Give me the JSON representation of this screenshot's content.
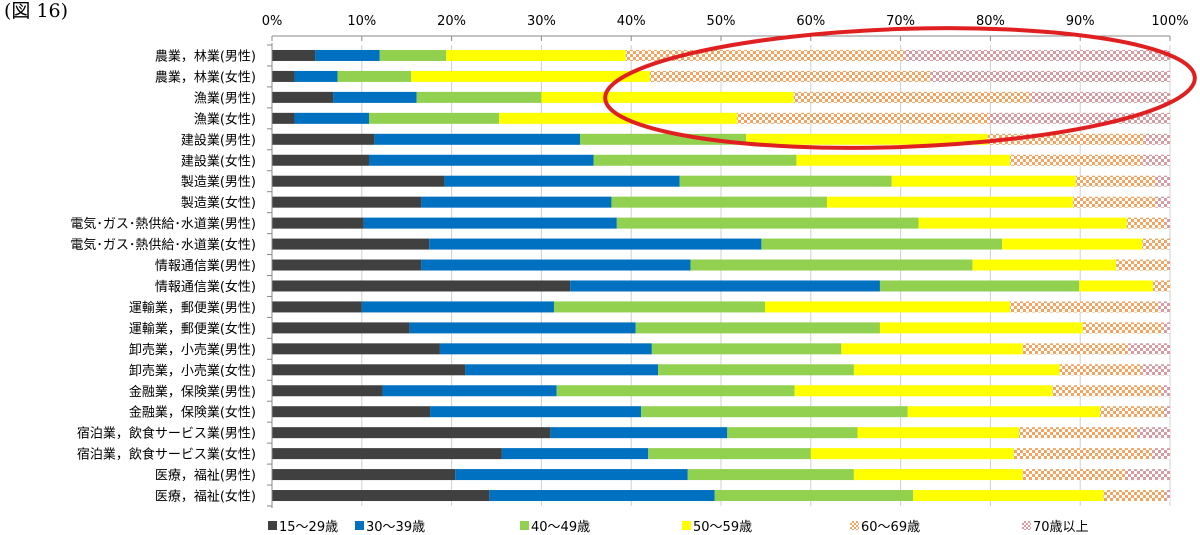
{
  "figure_label": "(図 16)",
  "colors": {
    "c15_29": "#404040",
    "c30_39": "#0070c0",
    "c40_49": "#92d050",
    "c50_59": "#ffff00",
    "c60_69": "#f4a460",
    "c70": "#d99aa2",
    "annotation": "#e02020"
  },
  "chart_data": {
    "type": "bar",
    "orientation": "horizontal",
    "stacked": "percent",
    "xlim": [
      0,
      100
    ],
    "x_ticks": [
      "0%",
      "10%",
      "20%",
      "30%",
      "40%",
      "50%",
      "60%",
      "70%",
      "80%",
      "90%",
      "100%"
    ],
    "grid": true,
    "legend_position": "bottom",
    "categories": [
      "農業，林業(男性)",
      "農業，林業(女性)",
      "漁業(男性)",
      "漁業(女性)",
      "建設業(男性)",
      "建設業(女性)",
      "製造業(男性)",
      "製造業(女性)",
      "電気･ガス･熱供給･水道業(男性)",
      "電気･ガス･熱供給･水道業(女性)",
      "情報通信業(男性)",
      "情報通信業(女性)",
      "運輸業，郵便業(男性)",
      "運輸業，郵便業(女性)",
      "卸売業，小売業(男性)",
      "卸売業，小売業(女性)",
      "金融業，保険業(男性)",
      "金融業，保険業(女性)",
      "宿泊業，飲食サービス業(男性)",
      "宿泊業，飲食サービス業(女性)",
      "医療，福祉(男性)",
      "医療，福祉(女性)"
    ],
    "series": [
      {
        "name": "15〜29歳",
        "color": "#404040",
        "pattern": "solid",
        "values": [
          4.8,
          2.5,
          6.8,
          2.5,
          11.4,
          10.8,
          19.2,
          16.6,
          10.2,
          17.5,
          16.6,
          33.2,
          10.0,
          15.3,
          18.7,
          21.5,
          12.3,
          17.6,
          31.0,
          25.6,
          20.4,
          24.2
        ]
      },
      {
        "name": "30〜39歳",
        "color": "#0070c0",
        "pattern": "solid",
        "values": [
          7.2,
          4.8,
          9.3,
          8.3,
          22.9,
          25.0,
          26.2,
          21.2,
          28.2,
          37.0,
          30.0,
          34.5,
          21.4,
          25.2,
          23.6,
          21.5,
          19.4,
          23.5,
          19.7,
          16.3,
          25.9,
          25.1
        ]
      },
      {
        "name": "40〜49歳",
        "color": "#92d050",
        "pattern": "solid",
        "values": [
          7.4,
          8.2,
          13.9,
          14.5,
          18.5,
          22.6,
          23.6,
          24.0,
          33.6,
          26.8,
          31.4,
          22.2,
          23.5,
          27.2,
          21.1,
          21.8,
          26.5,
          29.7,
          14.5,
          18.1,
          18.5,
          22.1
        ]
      },
      {
        "name": "50〜59歳",
        "color": "#ffff00",
        "pattern": "solid",
        "values": [
          20.0,
          26.6,
          28.1,
          26.5,
          26.9,
          23.8,
          20.5,
          27.4,
          23.2,
          15.6,
          16.0,
          8.2,
          27.3,
          22.6,
          20.2,
          22.9,
          28.7,
          21.4,
          18.0,
          22.6,
          18.8,
          21.2
        ]
      },
      {
        "name": "60〜69歳",
        "color": "#f4a460",
        "pattern": "checker",
        "values": [
          31.0,
          31.2,
          26.4,
          28.0,
          17.5,
          14.7,
          8.9,
          9.2,
          4.3,
          3.0,
          5.8,
          1.9,
          16.5,
          8.9,
          11.7,
          9.2,
          12.2,
          7.2,
          13.2,
          15.4,
          11.5,
          6.9
        ]
      },
      {
        "name": "70歳以上",
        "color": "#d99aa2",
        "pattern": "checker",
        "values": [
          29.6,
          26.7,
          15.5,
          20.2,
          2.8,
          3.1,
          1.6,
          1.6,
          0.5,
          0.1,
          0.2,
          0.0,
          1.3,
          0.8,
          4.7,
          3.1,
          0.9,
          0.6,
          3.6,
          2.0,
          4.9,
          0.5
        ]
      }
    ]
  }
}
